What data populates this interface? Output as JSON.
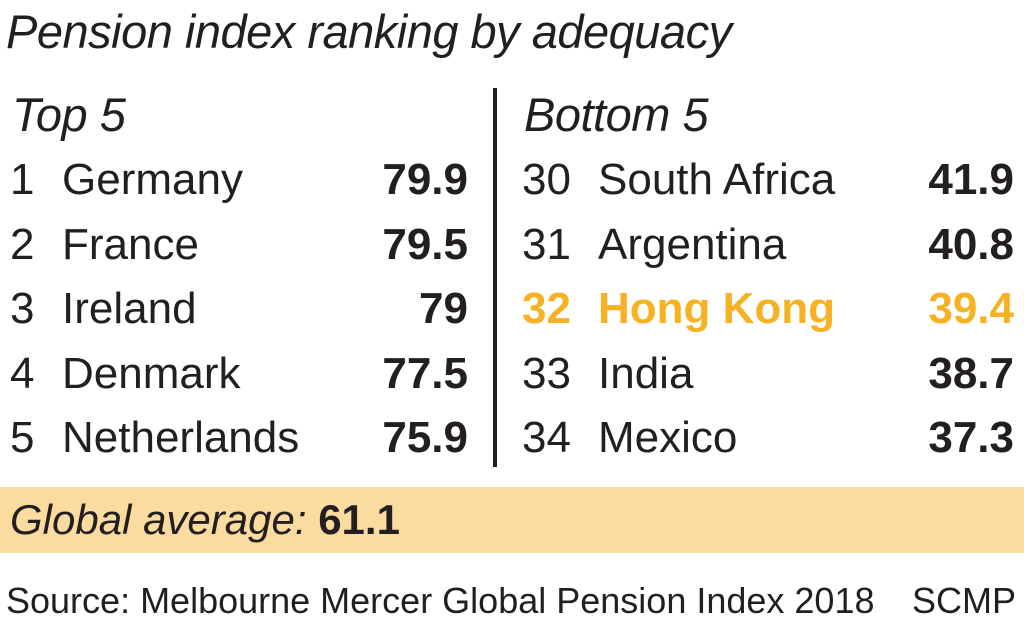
{
  "chart_data": {
    "type": "table",
    "title": "Pension index ranking by adequacy",
    "top": {
      "heading": "Top 5",
      "rows": [
        {
          "rank": "1",
          "country": "Germany",
          "score": "79.9"
        },
        {
          "rank": "2",
          "country": "France",
          "score": "79.5"
        },
        {
          "rank": "3",
          "country": "Ireland",
          "score": "79"
        },
        {
          "rank": "4",
          "country": "Denmark",
          "score": "77.5"
        },
        {
          "rank": "5",
          "country": "Netherlands",
          "score": "75.9"
        }
      ]
    },
    "bottom": {
      "heading": "Bottom 5",
      "rows": [
        {
          "rank": "30",
          "country": "South Africa",
          "score": "41.9"
        },
        {
          "rank": "31",
          "country": "Argentina",
          "score": "40.8"
        },
        {
          "rank": "32",
          "country": "Hong Kong",
          "score": "39.4",
          "highlight": true
        },
        {
          "rank": "33",
          "country": "India",
          "score": "38.7"
        },
        {
          "rank": "34",
          "country": "Mexico",
          "score": "37.3"
        }
      ]
    },
    "global_average": {
      "label": "Global average:",
      "value": "61.1"
    },
    "source": "Source: Melbourne Mercer Global Pension Index 2018",
    "credit": "SCMP"
  },
  "colors": {
    "highlight": "#f6b223",
    "average_band": "#fbdb9f",
    "text": "#231f20"
  }
}
